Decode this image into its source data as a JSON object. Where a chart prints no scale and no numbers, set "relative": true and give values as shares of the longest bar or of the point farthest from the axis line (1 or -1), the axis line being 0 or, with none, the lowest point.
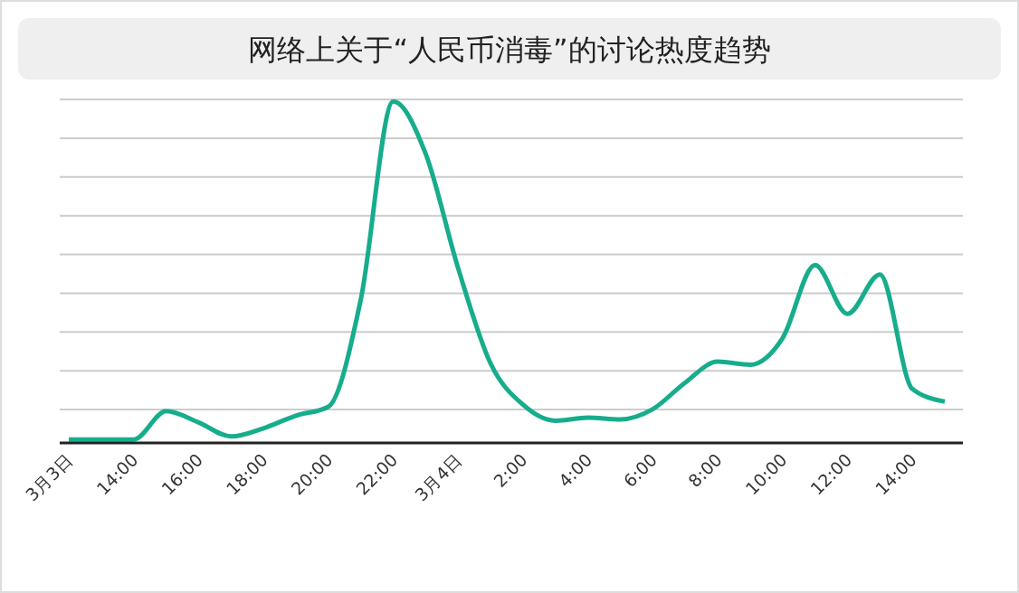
{
  "chart_data": {
    "type": "line",
    "title": "网络上关于“人民币消毒”的讨论热度趋势",
    "relative": true,
    "grid": true,
    "marker": "none",
    "categories": [
      "3月3日",
      null,
      "14:00",
      null,
      "16:00",
      null,
      "18:00",
      null,
      "20:00",
      null,
      "22:00",
      null,
      "3月4日",
      null,
      "2:00",
      null,
      "4:00",
      null,
      "6:00",
      null,
      "8:00",
      null,
      "10:00",
      null,
      "12:00",
      null,
      "14:00",
      null
    ],
    "series": [
      {
        "color": "#17ad8c",
        "values": [
          0.01,
          0.01,
          0.01,
          0.093,
          0.06,
          0.019,
          0.043,
          0.08,
          0.106,
          0.42,
          1,
          0.847,
          0.512,
          0.233,
          0.112,
          0.065,
          0.074,
          0.069,
          0.099,
          0.177,
          0.238,
          0.229,
          0.307,
          0.521,
          0.378,
          0.493,
          0.158,
          0.121
        ]
      }
    ]
  }
}
